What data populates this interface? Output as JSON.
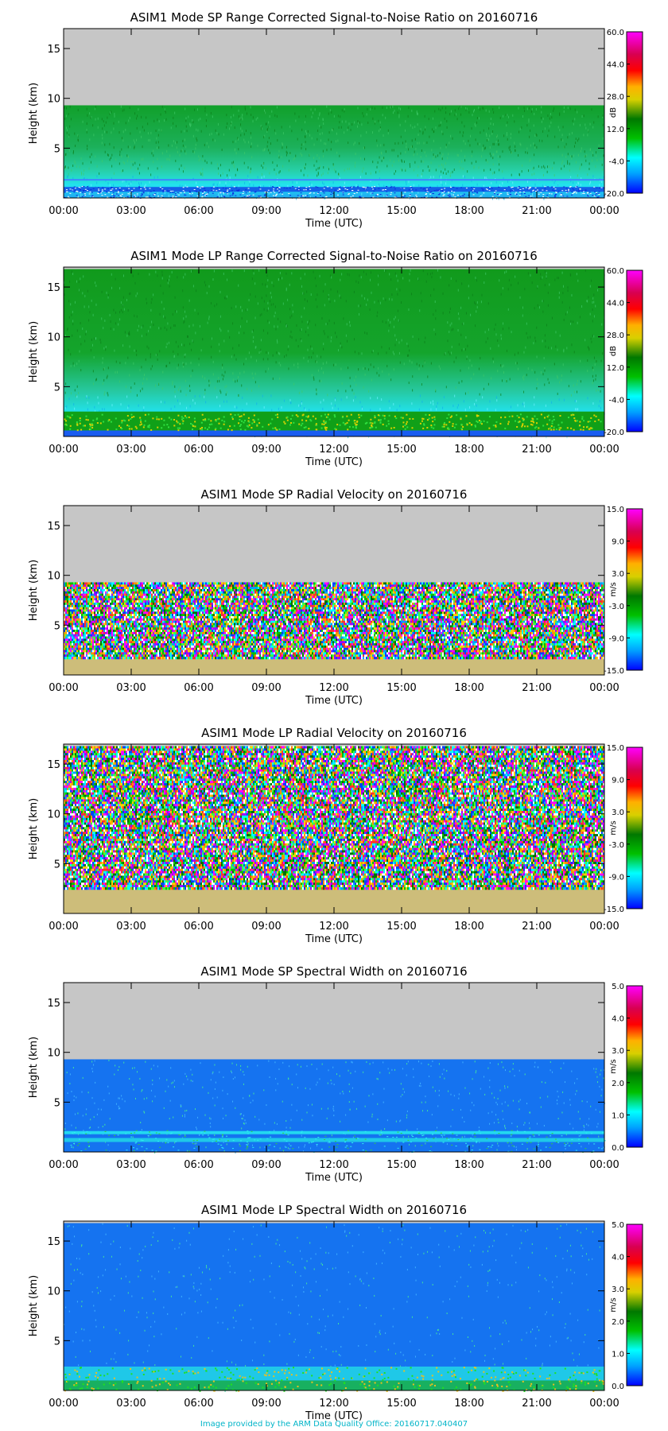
{
  "footer": "Image provided by the ARM Data Quality Office: 20160717.040407",
  "colors": {
    "sky_gray": "#c6c6c6",
    "snr_green": "#1a9a1a",
    "snr_cyan": "#20dcea",
    "sw_blue": "#1573f0",
    "vel_tan": "#cdbd7a"
  },
  "x_ticks": [
    "00:00",
    "03:00",
    "06:00",
    "09:00",
    "12:00",
    "15:00",
    "18:00",
    "21:00",
    "00:00"
  ],
  "chart_data": [
    {
      "type": "heatmap",
      "title": "ASIM1 Mode SP Range Corrected Signal-to-Noise Ratio on 20160716",
      "xlabel": "Time (UTC)",
      "ylabel": "Height (km)",
      "xlim": [
        0,
        24
      ],
      "ylim": [
        0,
        17
      ],
      "y_ticks": [
        "5",
        "10",
        "15"
      ],
      "y_tick_values": [
        5,
        10,
        15
      ],
      "data_top_km": 9.3,
      "colorbar": {
        "unit": "dB",
        "range": [
          -20,
          60
        ],
        "ticks": [
          "60.0",
          "44.0",
          "28.0",
          "12.0",
          "-4.0",
          "-20.0"
        ]
      },
      "scene": "snr_sp"
    },
    {
      "type": "heatmap",
      "title": "ASIM1 Mode LP Range Corrected Signal-to-Noise Ratio on 20160716",
      "xlabel": "Time (UTC)",
      "ylabel": "Height (km)",
      "xlim": [
        0,
        24
      ],
      "ylim": [
        0,
        17
      ],
      "y_ticks": [
        "5",
        "10",
        "15"
      ],
      "y_tick_values": [
        5,
        10,
        15
      ],
      "data_top_km": 16.8,
      "colorbar": {
        "unit": "dB",
        "range": [
          -20,
          60
        ],
        "ticks": [
          "60.0",
          "44.0",
          "28.0",
          "12.0",
          "-4.0",
          "-20.0"
        ]
      },
      "scene": "snr_lp"
    },
    {
      "type": "heatmap",
      "title": "ASIM1 Mode SP Radial Velocity  on 20160716",
      "xlabel": "Time (UTC)",
      "ylabel": "Height (km)",
      "xlim": [
        0,
        24
      ],
      "ylim": [
        0,
        17
      ],
      "y_ticks": [
        "5",
        "10",
        "15"
      ],
      "y_tick_values": [
        5,
        10,
        15
      ],
      "data_top_km": 9.3,
      "colorbar": {
        "unit": "m/s",
        "range": [
          -15,
          15
        ],
        "ticks": [
          "15.0",
          "9.0",
          "3.0",
          "-3.0",
          "-9.0",
          "-15.0"
        ]
      },
      "scene": "vel_sp"
    },
    {
      "type": "heatmap",
      "title": "ASIM1 Mode LP Radial Velocity  on 20160716",
      "xlabel": "Time (UTC)",
      "ylabel": "Height (km)",
      "xlim": [
        0,
        24
      ],
      "ylim": [
        0,
        17
      ],
      "y_ticks": [
        "5",
        "10",
        "15"
      ],
      "y_tick_values": [
        5,
        10,
        15
      ],
      "data_top_km": 16.8,
      "colorbar": {
        "unit": "m/s",
        "range": [
          -15,
          15
        ],
        "ticks": [
          "15.0",
          "9.0",
          "3.0",
          "-3.0",
          "-9.0",
          "-15.0"
        ]
      },
      "scene": "vel_lp"
    },
    {
      "type": "heatmap",
      "title": "ASIM1 Mode SP Spectral Width  on 20160716",
      "xlabel": "Time (UTC)",
      "ylabel": "Height (km)",
      "xlim": [
        0,
        24
      ],
      "ylim": [
        0,
        17
      ],
      "y_ticks": [
        "5",
        "10",
        "15"
      ],
      "y_tick_values": [
        5,
        10,
        15
      ],
      "data_top_km": 9.3,
      "colorbar": {
        "unit": "m/s",
        "range": [
          0,
          5
        ],
        "ticks": [
          "5.0",
          "4.0",
          "3.0",
          "2.0",
          "1.0",
          "0.0"
        ]
      },
      "scene": "sw_sp"
    },
    {
      "type": "heatmap",
      "title": "ASIM1 Mode LP Spectral Width  on 20160716",
      "xlabel": "Time (UTC)",
      "ylabel": "Height (km)",
      "xlim": [
        0,
        24
      ],
      "ylim": [
        0,
        17
      ],
      "y_ticks": [
        "5",
        "10",
        "15"
      ],
      "y_tick_values": [
        5,
        10,
        15
      ],
      "data_top_km": 16.8,
      "colorbar": {
        "unit": "m/s",
        "range": [
          0,
          5
        ],
        "ticks": [
          "5.0",
          "4.0",
          "3.0",
          "2.0",
          "1.0",
          "0.0"
        ]
      },
      "scene": "sw_lp"
    }
  ]
}
